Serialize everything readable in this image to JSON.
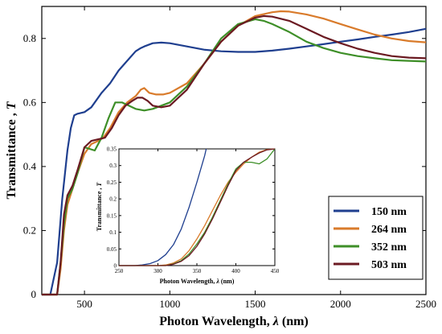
{
  "chart_data": [
    {
      "id": "main",
      "type": "line",
      "xlabel_parts": [
        "Photon Wavelength, ",
        "λ",
        " (nm)"
      ],
      "ylabel_parts": [
        "Transmittance , ",
        "T"
      ],
      "xlim": [
        250,
        2500
      ],
      "ylim": [
        0,
        0.9
      ],
      "xticks": [
        500,
        1000,
        1500,
        2000,
        2500
      ],
      "xticklabels": [
        "500",
        "1000",
        "1500",
        "2000",
        "2500"
      ],
      "yticks": [
        0,
        0.2,
        0.4,
        0.6,
        0.8
      ],
      "yticklabels": [
        "0",
        "0.2",
        "0.4",
        "0.6",
        "0.8"
      ],
      "grid": false,
      "legend_position": "bottom-right",
      "series": [
        {
          "name": "150 nm",
          "color": "#1f3f8f",
          "x": [
            250,
            300,
            340,
            370,
            400,
            420,
            440,
            460,
            500,
            540,
            560,
            600,
            650,
            700,
            750,
            800,
            830,
            850,
            900,
            950,
            1000,
            1100,
            1200,
            1300,
            1400,
            1500,
            1600,
            1700,
            1800,
            1900,
            2000,
            2100,
            2200,
            2300,
            2400,
            2500
          ],
          "y": [
            0.0,
            0.0,
            0.1,
            0.3,
            0.45,
            0.52,
            0.56,
            0.565,
            0.57,
            0.585,
            0.6,
            0.63,
            0.66,
            0.7,
            0.73,
            0.76,
            0.77,
            0.775,
            0.785,
            0.787,
            0.785,
            0.775,
            0.765,
            0.76,
            0.758,
            0.758,
            0.762,
            0.768,
            0.775,
            0.782,
            0.79,
            0.797,
            0.805,
            0.812,
            0.82,
            0.83
          ]
        },
        {
          "name": "264 nm",
          "color": "#d97b2b",
          "x": [
            250,
            300,
            340,
            360,
            380,
            400,
            430,
            460,
            500,
            540,
            580,
            610,
            650,
            700,
            750,
            800,
            830,
            850,
            880,
            920,
            960,
            1000,
            1100,
            1200,
            1300,
            1400,
            1500,
            1600,
            1650,
            1700,
            1800,
            1900,
            2000,
            2100,
            2200,
            2300,
            2400,
            2500
          ],
          "y": [
            0.0,
            0.0,
            0.0,
            0.08,
            0.2,
            0.28,
            0.33,
            0.38,
            0.44,
            0.47,
            0.48,
            0.49,
            0.52,
            0.57,
            0.6,
            0.62,
            0.64,
            0.645,
            0.63,
            0.625,
            0.625,
            0.63,
            0.66,
            0.72,
            0.79,
            0.84,
            0.87,
            0.882,
            0.885,
            0.884,
            0.875,
            0.862,
            0.845,
            0.828,
            0.812,
            0.8,
            0.792,
            0.788
          ]
        },
        {
          "name": "352 nm",
          "color": "#3e8f28",
          "x": [
            250,
            300,
            340,
            360,
            380,
            400,
            430,
            460,
            500,
            530,
            560,
            600,
            640,
            680,
            720,
            760,
            800,
            850,
            900,
            950,
            1000,
            1100,
            1200,
            1300,
            1400,
            1500,
            1550,
            1600,
            1700,
            1800,
            1900,
            2000,
            2100,
            2200,
            2300,
            2400,
            2500
          ],
          "y": [
            0.0,
            0.0,
            0.0,
            0.1,
            0.22,
            0.3,
            0.33,
            0.38,
            0.46,
            0.455,
            0.45,
            0.49,
            0.55,
            0.6,
            0.6,
            0.59,
            0.58,
            0.575,
            0.58,
            0.59,
            0.6,
            0.65,
            0.72,
            0.8,
            0.845,
            0.86,
            0.855,
            0.845,
            0.82,
            0.79,
            0.77,
            0.755,
            0.745,
            0.738,
            0.732,
            0.73,
            0.728
          ]
        },
        {
          "name": "503 nm",
          "color": "#6b1a22",
          "x": [
            250,
            300,
            340,
            360,
            380,
            400,
            430,
            460,
            500,
            540,
            580,
            620,
            660,
            700,
            740,
            780,
            810,
            840,
            870,
            900,
            950,
            1000,
            1100,
            1200,
            1300,
            1400,
            1500,
            1550,
            1600,
            1700,
            1800,
            1900,
            2000,
            2100,
            2200,
            2300,
            2400,
            2500
          ],
          "y": [
            0.0,
            0.0,
            0.0,
            0.1,
            0.25,
            0.31,
            0.34,
            0.39,
            0.46,
            0.48,
            0.485,
            0.49,
            0.52,
            0.56,
            0.59,
            0.605,
            0.615,
            0.615,
            0.605,
            0.59,
            0.585,
            0.59,
            0.64,
            0.72,
            0.79,
            0.84,
            0.865,
            0.87,
            0.868,
            0.855,
            0.83,
            0.805,
            0.785,
            0.768,
            0.755,
            0.745,
            0.74,
            0.738
          ]
        }
      ]
    },
    {
      "id": "inset",
      "type": "line",
      "xlabel_parts": [
        "Photon Wavelength, ",
        "λ",
        " (nm)"
      ],
      "ylabel_parts": [
        "Transmittance , ",
        "T"
      ],
      "xlim": [
        250,
        450
      ],
      "ylim": [
        0,
        0.35
      ],
      "xticks": [
        250,
        300,
        350,
        400,
        450
      ],
      "xticklabels": [
        "250",
        "300",
        "350",
        "400",
        "450"
      ],
      "yticks": [
        0,
        0.05,
        0.1,
        0.15,
        0.2,
        0.25,
        0.3,
        0.35
      ],
      "yticklabels": [
        "0",
        "0.05",
        "0.1",
        "0.15",
        "0.2",
        "0.25",
        "0.3",
        "0.35"
      ],
      "grid": false,
      "series": [
        {
          "name": "150 nm",
          "color": "#1f3f8f",
          "x": [
            250,
            270,
            280,
            290,
            300,
            310,
            320,
            330,
            340,
            350,
            360,
            362
          ],
          "y": [
            0.0,
            0.0,
            0.002,
            0.006,
            0.015,
            0.033,
            0.063,
            0.11,
            0.175,
            0.25,
            0.33,
            0.35
          ]
        },
        {
          "name": "264 nm",
          "color": "#d97b2b",
          "x": [
            250,
            300,
            310,
            320,
            330,
            340,
            350,
            360,
            370,
            380,
            390,
            400,
            410,
            420,
            430,
            440,
            450
          ],
          "y": [
            0.0,
            0.0,
            0.002,
            0.008,
            0.02,
            0.045,
            0.08,
            0.12,
            0.165,
            0.21,
            0.25,
            0.28,
            0.305,
            0.325,
            0.34,
            0.348,
            0.35
          ]
        },
        {
          "name": "352 nm",
          "color": "#3e8f28",
          "x": [
            250,
            310,
            320,
            330,
            340,
            350,
            360,
            370,
            380,
            390,
            400,
            410,
            420,
            430,
            440,
            450
          ],
          "y": [
            0.0,
            0.0,
            0.005,
            0.015,
            0.035,
            0.065,
            0.1,
            0.145,
            0.195,
            0.245,
            0.29,
            0.31,
            0.31,
            0.305,
            0.32,
            0.35
          ]
        },
        {
          "name": "503 nm",
          "color": "#6b1a22",
          "x": [
            250,
            310,
            320,
            330,
            340,
            350,
            360,
            370,
            380,
            390,
            400,
            410,
            420,
            430,
            440,
            450
          ],
          "y": [
            0.0,
            0.0,
            0.004,
            0.013,
            0.03,
            0.058,
            0.095,
            0.14,
            0.19,
            0.24,
            0.285,
            0.31,
            0.325,
            0.338,
            0.347,
            0.35
          ]
        }
      ]
    }
  ]
}
